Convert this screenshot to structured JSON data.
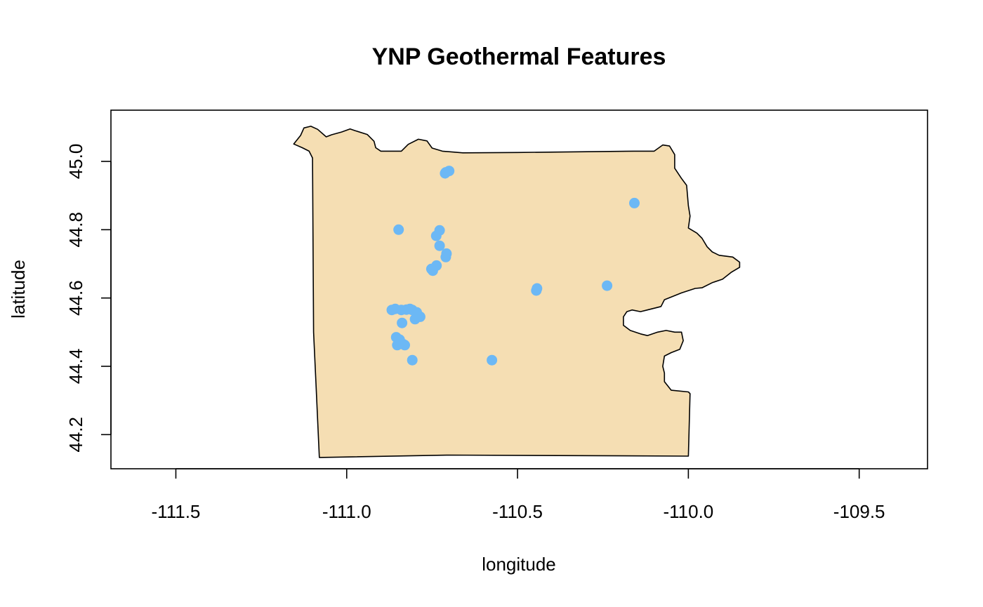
{
  "chart_data": {
    "type": "scatter",
    "title": "YNP Geothermal Features",
    "xlabel": "longitude",
    "ylabel": "latitude",
    "xlim": [
      -111.69,
      -109.3
    ],
    "ylim": [
      44.1,
      45.15
    ],
    "x_ticks": [
      -111.5,
      -111.0,
      -110.5,
      -110.0,
      -109.5
    ],
    "x_tick_labels": [
      "-111.5",
      "-111.0",
      "-110.5",
      "-110.0",
      "-109.5"
    ],
    "y_ticks": [
      44.2,
      44.4,
      44.6,
      44.8,
      45.0
    ],
    "y_tick_labels": [
      "44.2",
      "44.4",
      "44.6",
      "44.8",
      "45.0"
    ],
    "grid": false,
    "legend": "none",
    "colors": {
      "park_fill": "#f5deb3",
      "park_outline": "#000000",
      "points": "#6cb8f5",
      "axes": "#000000"
    },
    "park_boundary": [
      [
        -111.155,
        45.051
      ],
      [
        -111.135,
        45.076
      ],
      [
        -111.125,
        45.098
      ],
      [
        -111.105,
        45.103
      ],
      [
        -111.085,
        45.094
      ],
      [
        -111.06,
        45.072
      ],
      [
        -111.044,
        45.078
      ],
      [
        -111.015,
        45.086
      ],
      [
        -110.99,
        45.095
      ],
      [
        -110.975,
        45.09
      ],
      [
        -110.94,
        45.079
      ],
      [
        -110.92,
        45.059
      ],
      [
        -110.915,
        45.04
      ],
      [
        -110.9,
        45.03
      ],
      [
        -110.84,
        45.03
      ],
      [
        -110.82,
        45.05
      ],
      [
        -110.79,
        45.065
      ],
      [
        -110.765,
        45.06
      ],
      [
        -110.75,
        45.039
      ],
      [
        -110.72,
        45.03
      ],
      [
        -110.66,
        45.025
      ],
      [
        -110.5,
        45.026
      ],
      [
        -110.16,
        45.03
      ],
      [
        -110.1,
        45.03
      ],
      [
        -110.075,
        45.048
      ],
      [
        -110.055,
        45.045
      ],
      [
        -110.04,
        45.02
      ],
      [
        -110.04,
        44.98
      ],
      [
        -110.02,
        44.95
      ],
      [
        -110.005,
        44.93
      ],
      [
        -110.0,
        44.87
      ],
      [
        -109.995,
        44.84
      ],
      [
        -110.0,
        44.805
      ],
      [
        -109.975,
        44.79
      ],
      [
        -109.96,
        44.775
      ],
      [
        -109.945,
        44.75
      ],
      [
        -109.93,
        44.735
      ],
      [
        -109.91,
        44.725
      ],
      [
        -109.87,
        44.72
      ],
      [
        -109.85,
        44.705
      ],
      [
        -109.85,
        44.69
      ],
      [
        -109.875,
        44.675
      ],
      [
        -109.9,
        44.655
      ],
      [
        -109.93,
        44.645
      ],
      [
        -109.96,
        44.63
      ],
      [
        -109.98,
        44.628
      ],
      [
        -110.02,
        44.615
      ],
      [
        -110.045,
        44.605
      ],
      [
        -110.07,
        44.595
      ],
      [
        -110.08,
        44.575
      ],
      [
        -110.12,
        44.565
      ],
      [
        -110.14,
        44.56
      ],
      [
        -110.165,
        44.565
      ],
      [
        -110.18,
        44.56
      ],
      [
        -110.19,
        44.545
      ],
      [
        -110.19,
        44.52
      ],
      [
        -110.17,
        44.505
      ],
      [
        -110.14,
        44.495
      ],
      [
        -110.12,
        44.49
      ],
      [
        -110.09,
        44.5
      ],
      [
        -110.065,
        44.505
      ],
      [
        -110.04,
        44.5
      ],
      [
        -110.02,
        44.5
      ],
      [
        -110.015,
        44.475
      ],
      [
        -110.025,
        44.45
      ],
      [
        -110.05,
        44.44
      ],
      [
        -110.07,
        44.43
      ],
      [
        -110.075,
        44.4
      ],
      [
        -110.07,
        44.38
      ],
      [
        -110.07,
        44.355
      ],
      [
        -110.05,
        44.33
      ],
      [
        -110.0,
        44.325
      ],
      [
        -109.995,
        44.32
      ],
      [
        -110.0,
        44.137
      ],
      [
        -110.7,
        44.14
      ],
      [
        -111.08,
        44.133
      ],
      [
        -111.09,
        44.35
      ],
      [
        -111.097,
        44.5
      ],
      [
        -111.1,
        45.01
      ],
      [
        -111.11,
        45.03
      ],
      [
        -111.13,
        45.04
      ],
      [
        -111.155,
        45.051
      ]
    ],
    "points": [
      [
        -110.71,
        44.968
      ],
      [
        -110.7,
        44.972
      ],
      [
        -110.712,
        44.965
      ],
      [
        -110.158,
        44.878
      ],
      [
        -110.848,
        44.8
      ],
      [
        -110.728,
        44.798
      ],
      [
        -110.738,
        44.782
      ],
      [
        -110.728,
        44.753
      ],
      [
        -110.708,
        44.73
      ],
      [
        -110.71,
        44.72
      ],
      [
        -110.737,
        44.695
      ],
      [
        -110.752,
        44.685
      ],
      [
        -110.748,
        44.68
      ],
      [
        -110.443,
        44.628
      ],
      [
        -110.445,
        44.622
      ],
      [
        -110.238,
        44.636
      ],
      [
        -110.868,
        44.565
      ],
      [
        -110.858,
        44.568
      ],
      [
        -110.84,
        44.565
      ],
      [
        -110.825,
        44.566
      ],
      [
        -110.815,
        44.568
      ],
      [
        -110.808,
        44.565
      ],
      [
        -110.795,
        44.558
      ],
      [
        -110.785,
        44.545
      ],
      [
        -110.8,
        44.538
      ],
      [
        -110.838,
        44.527
      ],
      [
        -110.855,
        44.485
      ],
      [
        -110.845,
        44.478
      ],
      [
        -110.852,
        44.462
      ],
      [
        -110.835,
        44.465
      ],
      [
        -110.83,
        44.462
      ],
      [
        -110.808,
        44.418
      ],
      [
        -110.575,
        44.418
      ]
    ]
  }
}
